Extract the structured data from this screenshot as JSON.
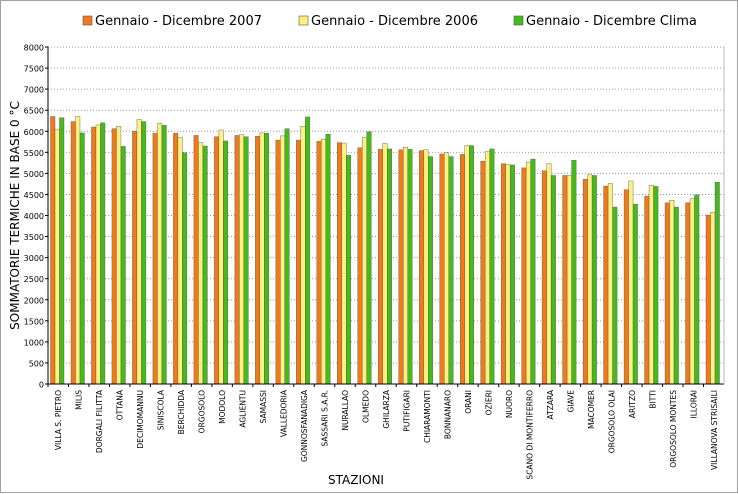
{
  "chart_data": {
    "type": "bar",
    "title": "",
    "xlabel": "STAZIONI",
    "ylabel": "SOMMATORIE TERMICHE IN BASE 0 °C",
    "ylim": [
      0,
      8000
    ],
    "ytick_step": 500,
    "yticks": [
      "0",
      "500",
      "1000",
      "1500",
      "2000",
      "2500",
      "3000",
      "3500",
      "4000",
      "4500",
      "5000",
      "5500",
      "6000",
      "6500",
      "7000",
      "7500",
      "8000"
    ],
    "grid": "horizontal-dotted",
    "legend_position": "top",
    "categories": [
      "VILLA S. PIETRO",
      "MILIS",
      "DORGALI FILITTA",
      "OTTANA",
      "DECIMOMANNU",
      "SINISCOLA",
      "BERCHIDDA",
      "ORGOSOLO",
      "MODOLO",
      "AGLIENTU",
      "SAMASSI",
      "VALLEDORIA",
      "GONNOSFANADIGA",
      "SASSARI S.A.R.",
      "NURALLAO",
      "OLMEDO",
      "GHILARZA",
      "PUTIFIGARI",
      "CHIARAMONTI",
      "BONNANARO",
      "ORANI",
      "OZIERI",
      "NUORO",
      "SCANO DI MONTIFERRO",
      "ATZARA",
      "GIAVE",
      "MACOMER",
      "ORGOSOLO OLAI",
      "ARITZO",
      "BITTI",
      "ORGOSOLO MONTES",
      "ILLORAI",
      "VILLANOVA STRISAILI"
    ],
    "series": [
      {
        "name": "Gennaio - Dicembre 2007",
        "color": "#f07a1a",
        "values": [
          6350,
          6230,
          6100,
          6060,
          6000,
          5950,
          5950,
          5900,
          5870,
          5900,
          5880,
          5790,
          5790,
          5760,
          5730,
          5610,
          5570,
          5560,
          5540,
          5460,
          5450,
          5290,
          5230,
          5130,
          5060,
          4950,
          4860,
          4700,
          4610,
          4460,
          4300,
          4300,
          4010
        ]
      },
      {
        "name": "Gennaio - Dicembre 2006",
        "color": "#fff080",
        "values": [
          6050,
          6350,
          6150,
          6120,
          6280,
          6190,
          5860,
          5730,
          6030,
          5920,
          5960,
          5890,
          6120,
          5810,
          5720,
          5850,
          5710,
          5620,
          5560,
          5490,
          5660,
          5520,
          5210,
          5270,
          5230,
          4950,
          4970,
          4760,
          4820,
          4720,
          4360,
          4400,
          4080
        ]
      },
      {
        "name": "Gennaio - Dicembre Clima",
        "color": "#44bb1a",
        "values": [
          6320,
          5960,
          6200,
          5640,
          6230,
          6140,
          5490,
          5650,
          5770,
          5870,
          5950,
          6060,
          6340,
          5930,
          5430,
          5990,
          5580,
          5570,
          5400,
          5400,
          5660,
          5580,
          5200,
          5340,
          4950,
          5310,
          4950,
          4200,
          4270,
          4690,
          4200,
          4490,
          4790
        ]
      }
    ]
  }
}
